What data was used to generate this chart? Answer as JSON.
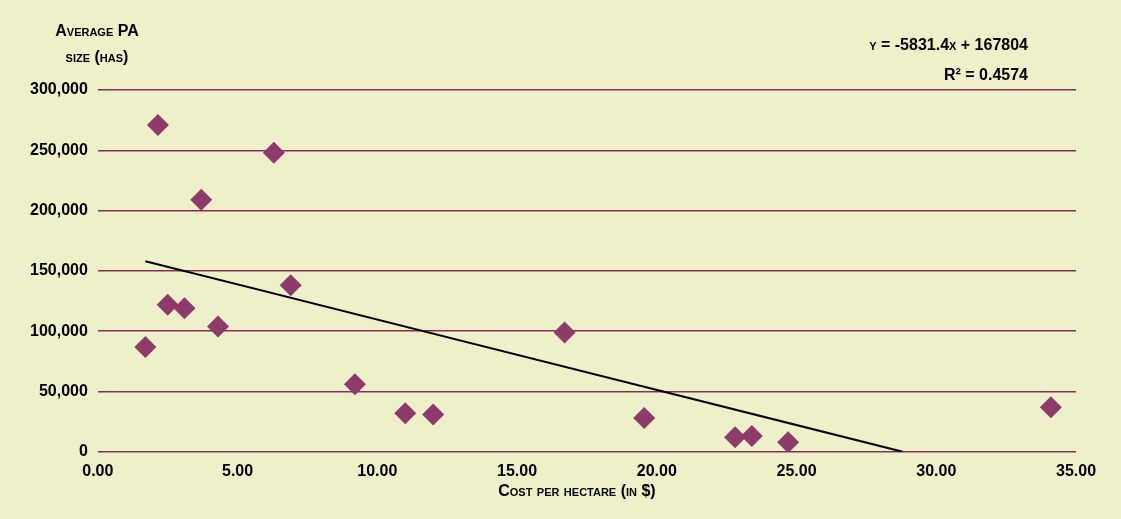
{
  "chart_data": {
    "type": "scatter",
    "xlabel": "Cost per hectare (in $)",
    "ylabel": "Average PA size (has)",
    "xlim": [
      0,
      35
    ],
    "xticks": [
      {
        "value": 0,
        "label": "0.00"
      },
      {
        "value": 5,
        "label": "5.00"
      },
      {
        "value": 10,
        "label": "10.00"
      },
      {
        "value": 15,
        "label": "15.00"
      },
      {
        "value": 20,
        "label": "20.00"
      },
      {
        "value": 25,
        "label": "25.00"
      },
      {
        "value": 30,
        "label": "30.00"
      },
      {
        "value": 35,
        "label": "35.00"
      }
    ],
    "ylim": [
      0,
      300000
    ],
    "yticks": [
      {
        "value": 0,
        "label": "0"
      },
      {
        "value": 50000,
        "label": "50,000"
      },
      {
        "value": 100000,
        "label": "100,000"
      },
      {
        "value": 150000,
        "label": "150,000"
      },
      {
        "value": 200000,
        "label": "200,000"
      },
      {
        "value": 250000,
        "label": "250,000"
      },
      {
        "value": 300000,
        "label": "300,000"
      }
    ],
    "grid": "y",
    "legend": false,
    "marker": "diamond",
    "annotations": [
      "y = -5831.4x + 167804",
      "R² = 0.4574"
    ],
    "series": [
      {
        "color": "#8e3a6b",
        "x": [
          1.7,
          2.15,
          2.5,
          3.1,
          3.7,
          4.3,
          6.3,
          6.9,
          9.2,
          11.0,
          12.0,
          16.7,
          19.55,
          22.8,
          23.4,
          24.7,
          34.1
        ],
        "values": [
          87000,
          271000,
          122000,
          119000,
          209000,
          104000,
          248000,
          138000,
          56000,
          32000,
          31000,
          99000,
          28000,
          12000,
          13000,
          8000,
          37000
        ]
      },
      {
        "type": "line",
        "color": "#000000",
        "marker": "none",
        "x": [
          1.7,
          28.8
        ],
        "values": [
          158000,
          0
        ]
      }
    ]
  }
}
